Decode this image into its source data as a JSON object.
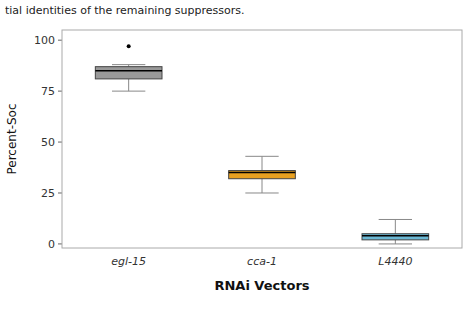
{
  "chart_data": {
    "type": "box",
    "subtitle": "tial identities of the remaining suppressors.",
    "categories": [
      "egl-15",
      "cca-1",
      "L4440"
    ],
    "colors": [
      "#999999",
      "#E8A020",
      "#6BB8D4"
    ],
    "boxes": [
      {
        "whislo": 75,
        "q1": 81,
        "med": 85,
        "q3": 87,
        "whishi": 88,
        "fliers": [
          97
        ]
      },
      {
        "whislo": 25,
        "q1": 32,
        "med": 35,
        "q3": 36,
        "whishi": 43,
        "fliers": []
      },
      {
        "whislo": 0,
        "q1": 2,
        "med": 4,
        "q3": 5,
        "whishi": 12,
        "fliers": []
      }
    ],
    "x_label": "RNAi Vectors",
    "y_label": "Percent-Soc",
    "ylim": [
      -2,
      105
    ],
    "yticks": [
      0,
      25,
      50,
      75,
      100
    ]
  }
}
